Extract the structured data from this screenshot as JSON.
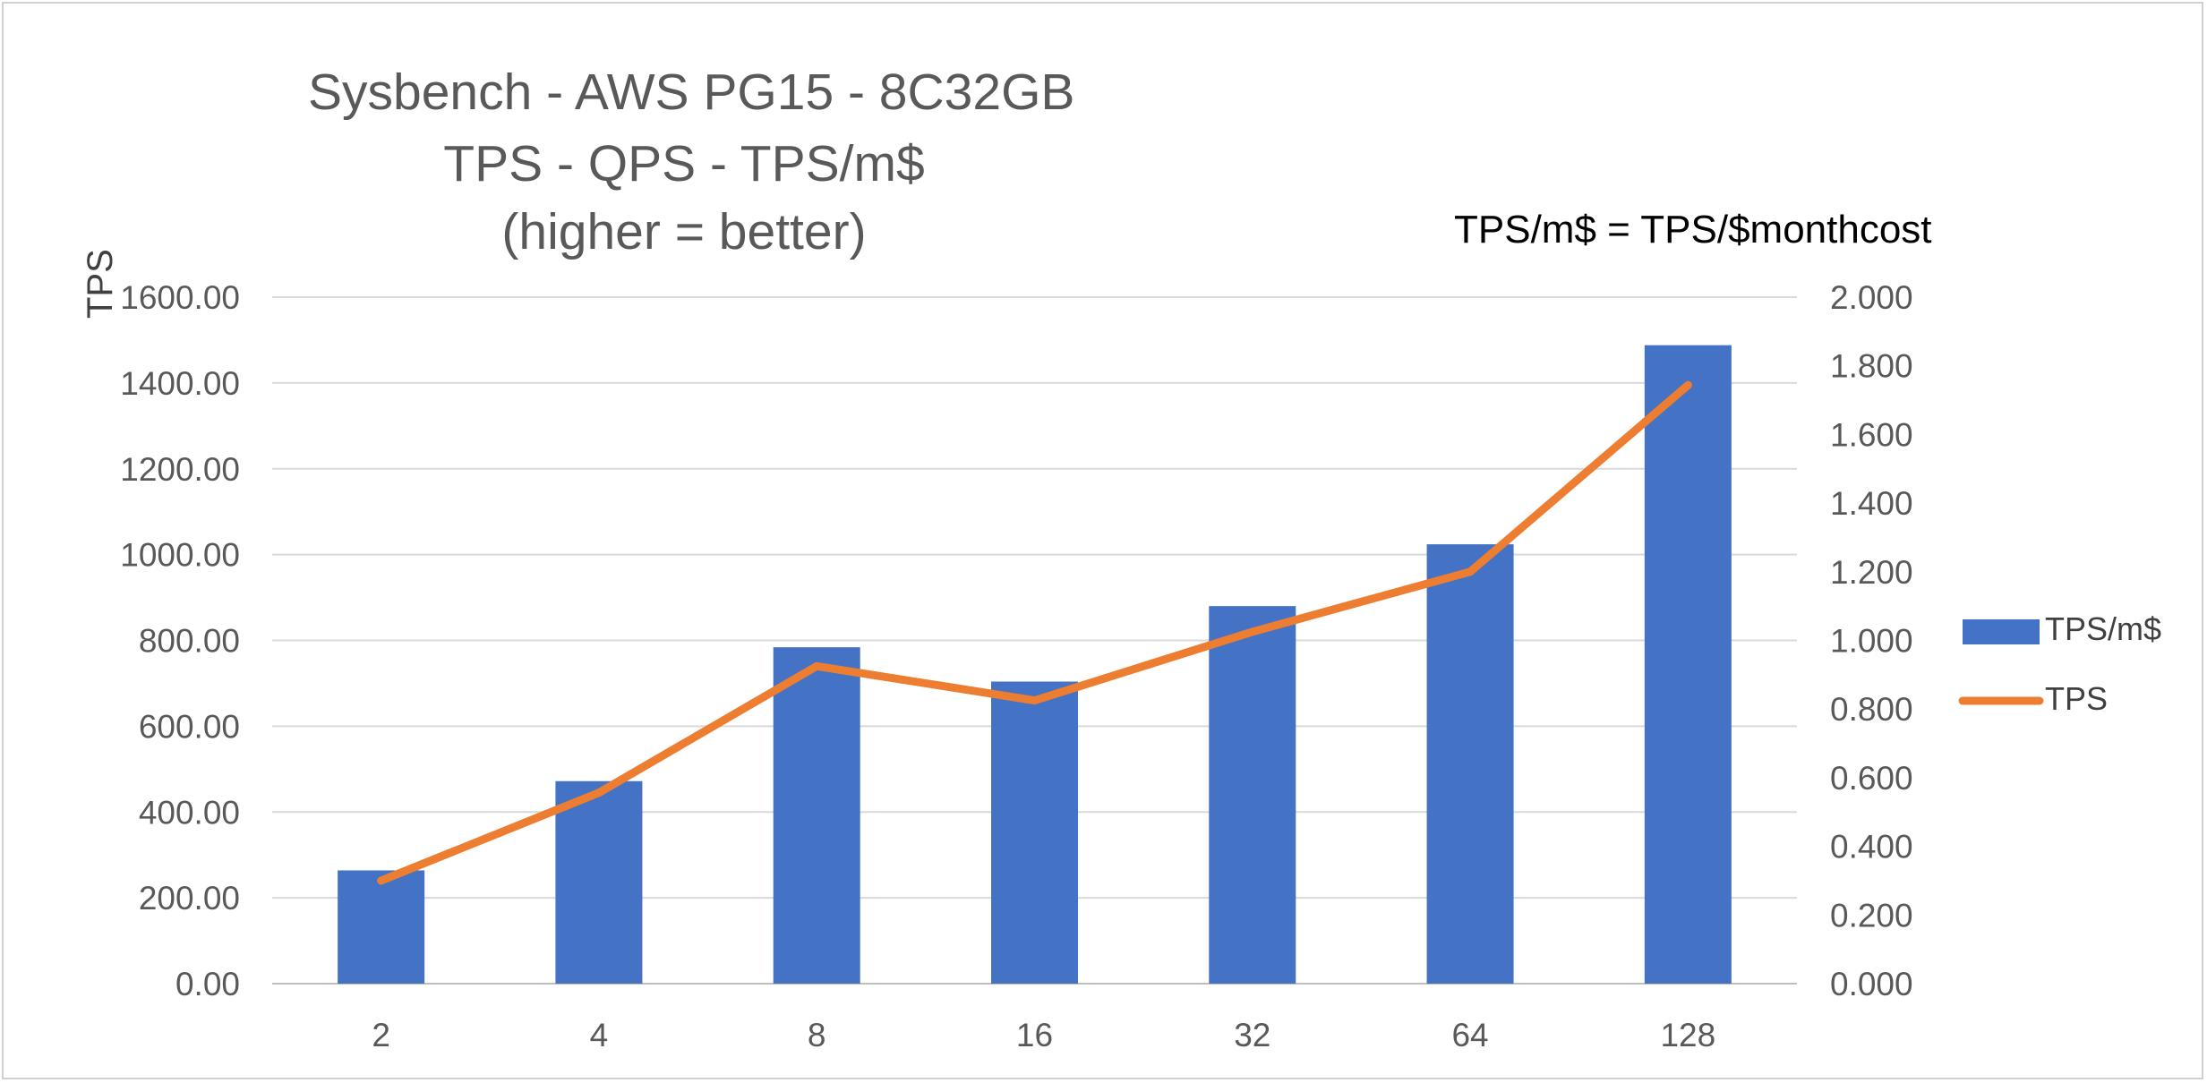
{
  "chart_data": {
    "type": "bar",
    "title_lines": [
      "Sysbench - AWS PG15 - 8C32GB",
      "TPS - QPS - TPS/m$",
      "(higher = better)"
    ],
    "annotation": "TPS/m$ = TPS/$monthcost",
    "ylabel": "TPS",
    "ylabel_right": "",
    "xlabel": "",
    "categories": [
      "2",
      "4",
      "8",
      "16",
      "32",
      "64",
      "128"
    ],
    "ylim_left": [
      0,
      1600
    ],
    "ylim_right": [
      0,
      2.0
    ],
    "yticks_left": [
      "0.00",
      "200.00",
      "400.00",
      "600.00",
      "800.00",
      "1000.00",
      "1200.00",
      "1400.00",
      "1600.00"
    ],
    "yticks_right": [
      "0.000",
      "0.200",
      "0.400",
      "0.600",
      "0.800",
      "1.000",
      "1.200",
      "1.400",
      "1.600",
      "1.800",
      "2.000"
    ],
    "series": [
      {
        "name": "TPS/m$",
        "type": "bar",
        "axis": "right",
        "color": "#4472c4",
        "values": [
          0.33,
          0.59,
          0.98,
          0.88,
          1.1,
          1.28,
          1.86
        ]
      },
      {
        "name": "TPS",
        "type": "line",
        "axis": "left",
        "color": "#ed7d31",
        "values": [
          240,
          445,
          740,
          660,
          820,
          960,
          1395
        ]
      }
    ],
    "grid": true,
    "legend_position": "right"
  }
}
